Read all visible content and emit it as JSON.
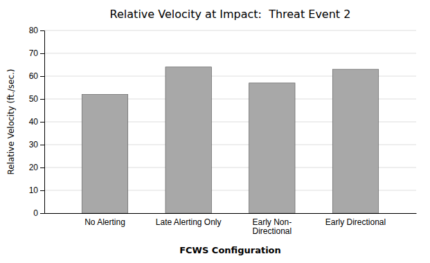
{
  "chart_data": {
    "type": "bar",
    "title": "Relative Velocity at Impact:  Threat Event 2",
    "categories": [
      "No Alerting",
      "Late Alerting Only",
      "Early Non-\nDirectional",
      "Early Directional"
    ],
    "values": [
      52,
      64,
      57,
      63
    ],
    "color": "#a8a8a8",
    "xlabel": "FCWS Configuration",
    "ylabel": "Relative Velocity (ft./sec.)",
    "ylim": [
      0,
      80
    ],
    "yticks": [
      0,
      10,
      20,
      30,
      40,
      50,
      60,
      70,
      80
    ],
    "grid": true
  }
}
